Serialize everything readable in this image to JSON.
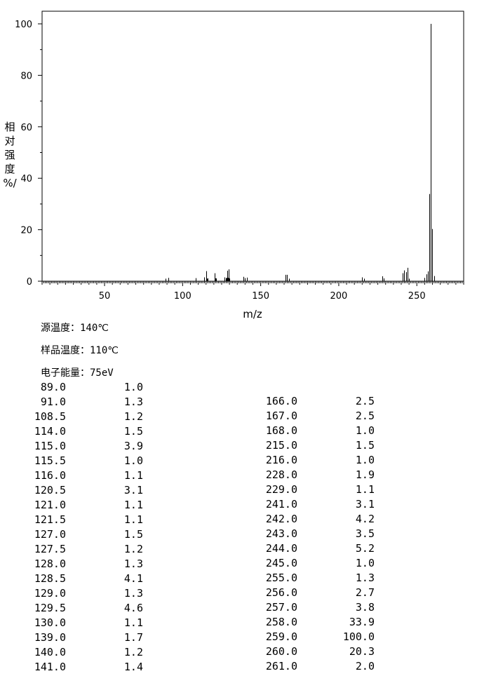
{
  "chart_data": {
    "type": "bar",
    "xlabel": "m/z",
    "ylabel_chars": [
      "相",
      "对",
      "强",
      "度",
      "%/"
    ],
    "xlim": [
      10,
      280
    ],
    "ylim": [
      0,
      100
    ],
    "x_ticks": [
      50,
      100,
      150,
      200,
      250
    ],
    "y_ticks": [
      0,
      20,
      40,
      60,
      80,
      100
    ],
    "x_ticks_minor_step": 5,
    "y_ticks_minor_step": 10,
    "grid": false,
    "bar_color": "#000000",
    "peaks_left": [
      {
        "mz": "89.0",
        "abundance": "1.0"
      },
      {
        "mz": "91.0",
        "abundance": "1.3"
      },
      {
        "mz": "108.5",
        "abundance": "1.2"
      },
      {
        "mz": "114.0",
        "abundance": "1.5"
      },
      {
        "mz": "115.0",
        "abundance": "3.9"
      },
      {
        "mz": "115.5",
        "abundance": "1.0"
      },
      {
        "mz": "116.0",
        "abundance": "1.1"
      },
      {
        "mz": "120.5",
        "abundance": "3.1"
      },
      {
        "mz": "121.0",
        "abundance": "1.1"
      },
      {
        "mz": "121.5",
        "abundance": "1.1"
      },
      {
        "mz": "127.0",
        "abundance": "1.5"
      },
      {
        "mz": "127.5",
        "abundance": "1.2"
      },
      {
        "mz": "128.0",
        "abundance": "1.3"
      },
      {
        "mz": "128.5",
        "abundance": "4.1"
      },
      {
        "mz": "129.0",
        "abundance": "1.3"
      },
      {
        "mz": "129.5",
        "abundance": "4.6"
      },
      {
        "mz": "130.0",
        "abundance": "1.1"
      },
      {
        "mz": "139.0",
        "abundance": "1.7"
      },
      {
        "mz": "140.0",
        "abundance": "1.2"
      },
      {
        "mz": "141.0",
        "abundance": "1.4"
      }
    ],
    "peaks_right": [
      {
        "mz": "166.0",
        "abundance": "2.5"
      },
      {
        "mz": "167.0",
        "abundance": "2.5"
      },
      {
        "mz": "168.0",
        "abundance": "1.0"
      },
      {
        "mz": "215.0",
        "abundance": "1.5"
      },
      {
        "mz": "216.0",
        "abundance": "1.0"
      },
      {
        "mz": "228.0",
        "abundance": "1.9"
      },
      {
        "mz": "229.0",
        "abundance": "1.1"
      },
      {
        "mz": "241.0",
        "abundance": "3.1"
      },
      {
        "mz": "242.0",
        "abundance": "4.2"
      },
      {
        "mz": "243.0",
        "abundance": "3.5"
      },
      {
        "mz": "244.0",
        "abundance": "5.2"
      },
      {
        "mz": "245.0",
        "abundance": "1.0"
      },
      {
        "mz": "255.0",
        "abundance": "1.3"
      },
      {
        "mz": "256.0",
        "abundance": "2.7"
      },
      {
        "mz": "257.0",
        "abundance": "3.8"
      },
      {
        "mz": "258.0",
        "abundance": "33.9"
      },
      {
        "mz": "259.0",
        "abundance": "100.0"
      },
      {
        "mz": "260.0",
        "abundance": "20.3"
      },
      {
        "mz": "261.0",
        "abundance": "2.0"
      }
    ]
  },
  "conditions": {
    "source_temp": {
      "label": "源温度：",
      "value": "140℃"
    },
    "sample_temp": {
      "label": "样品温度：",
      "value": "110℃"
    },
    "electron_energy": {
      "label": "电子能量：",
      "value": "75eV"
    }
  }
}
